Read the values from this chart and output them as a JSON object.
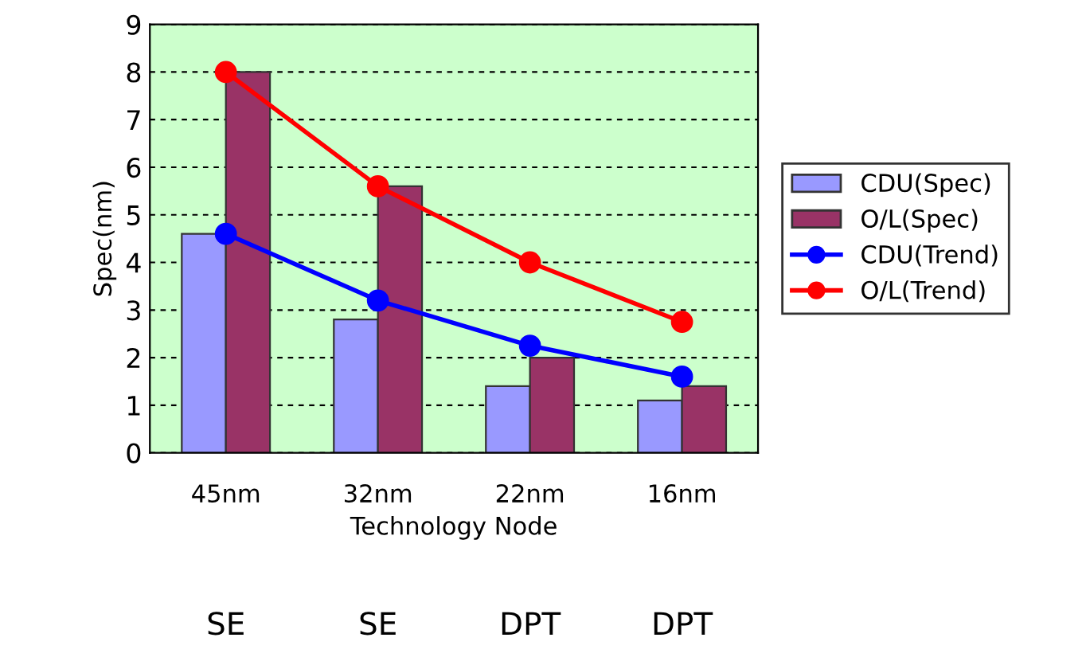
{
  "chart_data": {
    "type": "bar",
    "xlabel": "Technology Node",
    "ylabel": "Spec(nm)",
    "categories": [
      "45nm",
      "32nm",
      "22nm",
      "16nm"
    ],
    "series": [
      {
        "name": "CDU(Spec)",
        "color": "#9999ff",
        "values": [
          4.6,
          2.8,
          1.4,
          1.1
        ]
      },
      {
        "name": "O/L(Spec)",
        "color": "#993366",
        "values": [
          8.0,
          5.6,
          2.0,
          1.4
        ]
      },
      {
        "name": "CDU(Trend)",
        "type": "line",
        "color": "#0000ff",
        "marker": "circle",
        "values": [
          4.6,
          3.2,
          2.25,
          1.6
        ]
      },
      {
        "name": "O/L(Trend)",
        "type": "line",
        "color": "#ff0000",
        "marker": "circle",
        "values": [
          8.0,
          5.6,
          4.0,
          2.75
        ]
      }
    ],
    "ylim": [
      0,
      9
    ],
    "yticks": [
      0,
      1,
      2,
      3,
      4,
      5,
      6,
      7,
      8,
      9
    ],
    "grid": "y",
    "legend": "right",
    "annotations": [
      "SE",
      "SE",
      "DPT",
      "DPT"
    ]
  }
}
